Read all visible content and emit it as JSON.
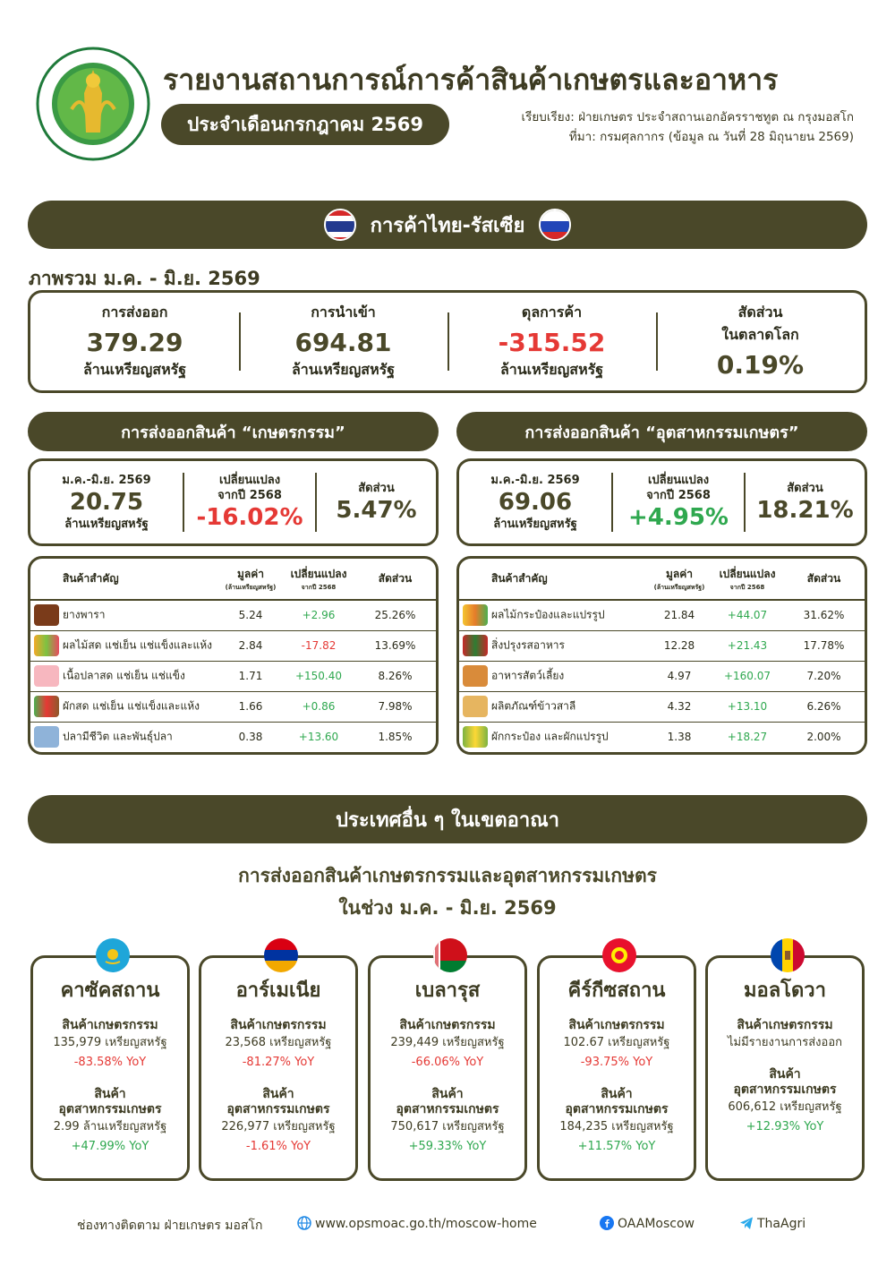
{
  "header": {
    "title": "รายงานสถานการณ์การค้าสินค้าเกษตรและอาหาร",
    "month": "ประจำเดือนกรกฎาคม  2569",
    "compiled_by": "เรียบเรียง: ฝ่ายเกษตร ประจำสถานเอกอัครราชทูต ณ กรุงมอสโก",
    "source": "ที่มา: กรมศุลกากร (ข้อมูล ณ วันที่ 28 มิถุนายน 2569)"
  },
  "banner1": "การค้าไทย-รัสเซีย",
  "overview": {
    "label": "ภาพรวม ม.ค. - มิ.ย. 2569",
    "export_label": "การส่งออก",
    "export_value": "379.29",
    "export_unit": "ล้านเหรียญสหรัฐ",
    "import_label": "การนำเข้า",
    "import_value": "694.81",
    "import_unit": "ล้านเหรียญสหรัฐ",
    "balance_label": "ดุลการค้า",
    "balance_value": "-315.52",
    "balance_unit": "ล้านเหรียญสหรัฐ",
    "share_label1": "สัดส่วน",
    "share_label2": "ในตลาดโลก",
    "share_value": "0.19%"
  },
  "agri": {
    "title": "การส่งออกสินค้า “เกษตรกรรม”",
    "period": "ม.ค.-มิ.ย. 2569",
    "value": "20.75",
    "unit": "ล้านเหรียญสหรัฐ",
    "change_label1": "เปลี่ยนแปลง",
    "change_label2": "จากปี 2568",
    "change": "-16.02%",
    "share_label": "สัดส่วน",
    "share": "5.47%",
    "cols": {
      "product": "สินค้าสำคัญ",
      "value": "มูลค่า",
      "value_sub": "(ล้านเหรียญสหรัฐ)",
      "change": "เปลี่ยนแปลง",
      "change_sub": "จากปี 2568",
      "share": "สัดส่วน"
    },
    "rows": [
      {
        "name": "ยางพารา",
        "value": "5.24",
        "change": "+2.96",
        "share": "25.26%"
      },
      {
        "name": "ผลไม้สด แช่เย็น แช่แข็งและแห้ง",
        "value": "2.84",
        "change": "-17.82",
        "share": "13.69%"
      },
      {
        "name": "เนื้อปลาสด แช่เย็น แช่แข็ง",
        "value": "1.71",
        "change": "+150.40",
        "share": "8.26%"
      },
      {
        "name": "ผักสด แช่เย็น แช่แข็งและแห้ง",
        "value": "1.66",
        "change": "+0.86",
        "share": "7.98%"
      },
      {
        "name": "ปลามีชีวิต และพันธุ์ปลา",
        "value": "0.38",
        "change": "+13.60",
        "share": "1.85%"
      }
    ]
  },
  "agro": {
    "title": "การส่งออกสินค้า “อุตสาหกรรมเกษตร”",
    "period": "ม.ค.-มิ.ย. 2569",
    "value": "69.06",
    "unit": "ล้านเหรียญสหรัฐ",
    "change_label1": "เปลี่ยนแปลง",
    "change_label2": "จากปี 2568",
    "change": "+4.95%",
    "share_label": "สัดส่วน",
    "share": "18.21%",
    "cols": {
      "product": "สินค้าสำคัญ",
      "value": "มูลค่า",
      "value_sub": "(ล้านเหรียญสหรัฐ)",
      "change": "เปลี่ยนแปลง",
      "change_sub": "จากปี 2568",
      "share": "สัดส่วน"
    },
    "rows": [
      {
        "name": "ผลไม้กระป๋องและแปรรูป",
        "value": "21.84",
        "change": "+44.07",
        "share": "31.62%"
      },
      {
        "name": "สิ่งปรุงรสอาหาร",
        "value": "12.28",
        "change": "+21.43",
        "share": "17.78%"
      },
      {
        "name": "อาหารสัตว์เลี้ยง",
        "value": "4.97",
        "change": "+160.07",
        "share": "7.20%"
      },
      {
        "name": "ผลิตภัณฑ์ข้าวสาลี",
        "value": "4.32",
        "change": "+13.10",
        "share": "6.26%"
      },
      {
        "name": "ผักกระป๋อง และผักแปรรูป",
        "value": "1.38",
        "change": "+18.27",
        "share": "2.00%"
      }
    ]
  },
  "banner2": "ประเทศอื่น ๆ ในเขตอาณา",
  "region": {
    "subtitle1": "การส่งออกสินค้าเกษตรกรรมและอุตสาหกรรมเกษตร",
    "subtitle2": "ในช่วง ม.ค. - มิ.ย. 2569",
    "countries": [
      {
        "name": "คาซัคสถาน",
        "agri_h": "สินค้าเกษตรกรรม",
        "agri_v": "135,979 เหรียญสหรัฐ",
        "agri_y": "-83.58% YoY",
        "ind_h1": "สินค้า",
        "ind_h2": "อุตสาหกรรมเกษตร",
        "ind_v": "2.99 ล้านเหรียญสหรัฐ",
        "ind_y": "+47.99% YoY"
      },
      {
        "name": "อาร์เมเนีย",
        "agri_h": "สินค้าเกษตรกรรม",
        "agri_v": "23,568 เหรียญสหรัฐ",
        "agri_y": "-81.27% YoY",
        "ind_h1": "สินค้า",
        "ind_h2": "อุตสาหกรรมเกษตร",
        "ind_v": "226,977 เหรียญสหรัฐ",
        "ind_y": "-1.61% YoY"
      },
      {
        "name": "เบลารุส",
        "agri_h": "สินค้าเกษตรกรรม",
        "agri_v": "239,449 เหรียญสหรัฐ",
        "agri_y": "-66.06% YoY",
        "ind_h1": "สินค้า",
        "ind_h2": "อุตสาหกรรมเกษตร",
        "ind_v": "750,617 เหรียญสหรัฐ",
        "ind_y": "+59.33% YoY"
      },
      {
        "name": "คีร์กีซสถาน",
        "agri_h": "สินค้าเกษตรกรรม",
        "agri_v": "102.67 เหรียญสหรัฐ",
        "agri_y": "-93.75% YoY",
        "ind_h1": "สินค้า",
        "ind_h2": "อุตสาหกรรมเกษตร",
        "ind_v": "184,235 เหรียญสหรัฐ",
        "ind_y": "+11.57% YoY"
      },
      {
        "name": "มอลโดวา",
        "agri_h": "สินค้าเกษตรกรรม",
        "agri_v": "ไม่มีรายงานการส่งออก",
        "agri_y": "",
        "ind_h1": "สินค้า",
        "ind_h2": "อุตสาหกรรมเกษตร",
        "ind_v": "606,612 เหรียญสหรัฐ",
        "ind_y": "+12.93% YoY"
      }
    ]
  },
  "footer": {
    "follow": "ช่องทางติดตาม ฝ่ายเกษตร มอสโก",
    "web": "www.opsmoac.go.th/moscow-home",
    "facebook": "OAAMoscow",
    "telegram": "ThaAgri"
  },
  "colors": {
    "olive": "#4a4829",
    "negative": "#e53935",
    "positive": "#2fa84f"
  }
}
